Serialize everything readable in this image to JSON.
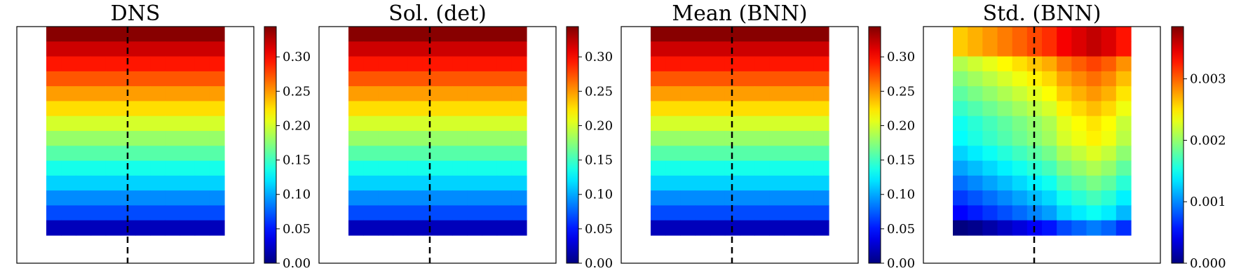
{
  "chart_data": [
    {
      "type": "heatmap",
      "title": "DNS",
      "colormap": "jet",
      "grid_shape": [
        14,
        12
      ],
      "colorbar": {
        "range": [
          0,
          0.344
        ],
        "ticks": [
          "0.00",
          "0.05",
          "0.10",
          "0.15",
          "0.20",
          "0.25",
          "0.30"
        ]
      },
      "row_values": [
        0.341,
        0.318,
        0.294,
        0.272,
        0.248,
        0.226,
        0.201,
        0.18,
        0.158,
        0.136,
        0.114,
        0.09,
        0.068,
        0.02
      ],
      "col_modulation": [
        0,
        0,
        0,
        0,
        0,
        0,
        0,
        0,
        0,
        0,
        0,
        0
      ],
      "dashed_line": true
    },
    {
      "type": "heatmap",
      "title": "Sol. (det)",
      "colormap": "jet",
      "grid_shape": [
        14,
        12
      ],
      "colorbar": {
        "range": [
          0,
          0.344
        ],
        "ticks": [
          "0.00",
          "0.05",
          "0.10",
          "0.15",
          "0.20",
          "0.25",
          "0.30"
        ]
      },
      "row_values": [
        0.341,
        0.318,
        0.294,
        0.272,
        0.248,
        0.226,
        0.201,
        0.18,
        0.158,
        0.136,
        0.114,
        0.09,
        0.068,
        0.02
      ],
      "col_modulation": [
        0,
        0,
        0,
        0,
        0,
        0,
        0,
        0,
        0,
        0,
        0,
        0
      ],
      "dashed_line": true
    },
    {
      "type": "heatmap",
      "title": "Mean (BNN)",
      "colormap": "jet",
      "grid_shape": [
        14,
        12
      ],
      "colorbar": {
        "range": [
          0,
          0.344
        ],
        "ticks": [
          "0.00",
          "0.05",
          "0.10",
          "0.15",
          "0.20",
          "0.25",
          "0.30"
        ]
      },
      "row_values": [
        0.341,
        0.318,
        0.294,
        0.272,
        0.248,
        0.226,
        0.201,
        0.18,
        0.158,
        0.136,
        0.114,
        0.09,
        0.068,
        0.02
      ],
      "col_modulation": [
        0,
        0,
        0,
        0,
        0,
        0,
        0,
        0,
        0,
        0,
        0,
        0
      ],
      "dashed_line": true
    },
    {
      "type": "heatmap",
      "title": "Std. (BNN)",
      "colormap": "jet",
      "grid_shape": [
        14,
        12
      ],
      "colorbar": {
        "range": [
          0,
          0.00385
        ],
        "ticks": [
          "0.000",
          "0.001",
          "0.002",
          "0.003"
        ]
      },
      "row_values": [
        0.0031,
        0.0031,
        0.00262,
        0.00245,
        0.0023,
        0.00215,
        0.002,
        0.00195,
        0.00178,
        0.0016,
        0.0014,
        0.0012,
        0.00098,
        0.00045
      ],
      "col_modulation": [
        -0.0005,
        -0.0004,
        -0.0003,
        -0.0002,
        -0.0001,
        0.0,
        0.0001,
        0.0003,
        0.0004,
        0.0005,
        0.0004,
        0.0002
      ],
      "dashed_line": true
    }
  ]
}
